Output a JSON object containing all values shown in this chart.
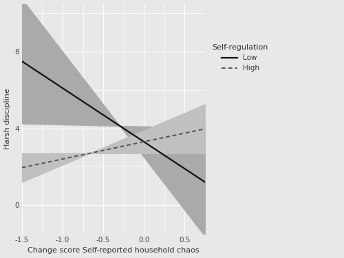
{
  "x_min": -1.5,
  "x_max": 0.75,
  "y_min": -1.5,
  "y_max": 10.5,
  "y_ticks": [
    0,
    4,
    8
  ],
  "x_ticks": [
    -1.5,
    -1.0,
    -0.5,
    0.0,
    0.5
  ],
  "xlabel": "Change score Self-reported household chaos",
  "ylabel": "Harsh discipline",
  "legend_title": "Self-regulation",
  "legend_entries": [
    "Low",
    "High"
  ],
  "bg_color": "#e8e8e8",
  "panel_bg": "#e8e8e8",
  "grid_color": "#ffffff",
  "low_line_color": "#111111",
  "high_line_color": "#555555",
  "ci_color_low": "#aaaaaa",
  "ci_color_high": "#c0c0c0",
  "low_intercept": 3.3,
  "low_slope": -2.8,
  "high_intercept": 3.3,
  "high_slope": 0.9,
  "low_ci_lower_intercept": 2.5,
  "low_ci_lower_slope": -5.5,
  "low_ci_upper_intercept": 4.1,
  "low_ci_upper_slope": -0.1,
  "high_ci_lower_intercept": 2.7,
  "high_ci_lower_slope": 0.0,
  "high_ci_upper_intercept": 3.9,
  "high_ci_upper_slope": 1.8,
  "tick_labelsize": 7.5,
  "axis_labelsize": 8.0
}
